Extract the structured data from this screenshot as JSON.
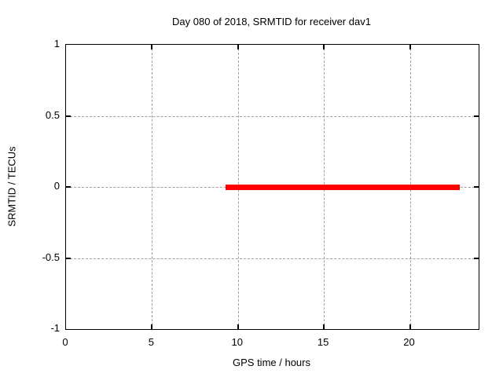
{
  "chart_data": {
    "type": "line",
    "title": "Day 080 of 2018, SRMTID for receiver dav1",
    "xlabel": "GPS time / hours",
    "ylabel": "SRMTID / TECUs",
    "xlim": [
      0,
      24
    ],
    "ylim": [
      -1,
      1
    ],
    "x_ticks": [
      0,
      5,
      10,
      15,
      20
    ],
    "x_tick_labels": [
      "0",
      "5",
      "10",
      "15",
      "20"
    ],
    "y_ticks": [
      -1,
      -0.5,
      0,
      0.5,
      1
    ],
    "y_tick_labels": [
      "-1",
      "-0.5",
      "0",
      "0.5",
      "1"
    ],
    "grid": true,
    "legend": "none",
    "series": [
      {
        "name": "SRMTID",
        "style": "thick-horizontal-line",
        "color": "#ff0000",
        "y": 0,
        "x_start": 9.3,
        "x_end": 22.9,
        "thickness_px": 7
      }
    ],
    "colors": {
      "background": "#ffffff",
      "border": "#000000",
      "grid": "#a0a0a0",
      "text": "#000000",
      "series": "#ff0000"
    }
  }
}
